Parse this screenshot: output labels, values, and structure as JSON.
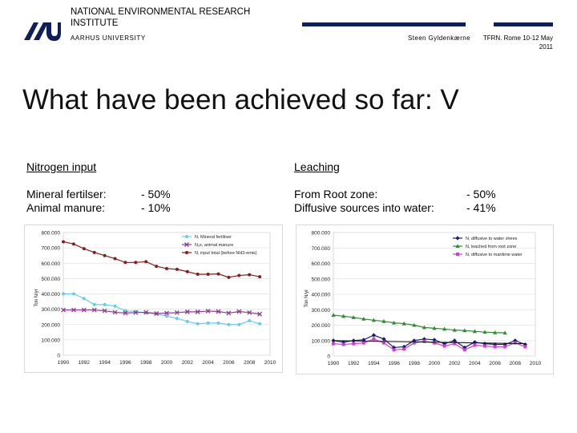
{
  "header": {
    "institution": "NATIONAL ENVIRONMENTAL RESEARCH INSTITUTE",
    "university": "AARHUS UNIVERSITY",
    "author": "Steen Gyldenkærne",
    "conference": "TFRN. Rome 10-12 May 2011"
  },
  "slide": {
    "title": "What have been achieved so far: V",
    "nitrogen_heading": "Nitrogen input",
    "leaching_heading": "Leaching",
    "mineral_label": "Mineral fertilser:",
    "mineral_value": "- 50%",
    "manure_label": "Animal manure:",
    "manure_value": "- 10%",
    "rootzone_label": "From Root zone:",
    "rootzone_value": "- 50%",
    "diffusive_label": "Diffusive sources into water:",
    "diffusive_value": "- 41%"
  },
  "colors": {
    "brand": "#0f1f5c"
  },
  "chart_data": [
    {
      "type": "line",
      "title": "",
      "xlabel": "",
      "ylabel": "Ton N/yr",
      "xlim": [
        1990,
        2010
      ],
      "ylim": [
        0,
        800000
      ],
      "x_ticks": [
        "1990",
        "1992",
        "1994",
        "1996",
        "1998",
        "2000",
        "2002",
        "2004",
        "2006",
        "2008",
        "2010"
      ],
      "y_ticks": [
        "0",
        "100.000",
        "200.000",
        "300.000",
        "400.000",
        "500.000",
        "600.000",
        "700.000",
        "800.000"
      ],
      "grid": true,
      "legend_position": "top-right",
      "series": [
        {
          "name": "N, Mineral fertiliser",
          "color": "#66ccee",
          "marker": "circle",
          "x": [
            1990,
            1991,
            1992,
            1993,
            1994,
            1995,
            1996,
            1997,
            1998,
            1999,
            2000,
            2001,
            2002,
            2003,
            2004,
            2005,
            2006,
            2007,
            2008,
            2009
          ],
          "values": [
            400000,
            400000,
            370000,
            330000,
            330000,
            320000,
            290000,
            285000,
            275000,
            270000,
            255000,
            240000,
            220000,
            205000,
            210000,
            210000,
            200000,
            200000,
            225000,
            205000
          ]
        },
        {
          "name": "N₂x, animal manure",
          "color": "#8e3a8e",
          "marker": "x",
          "x": [
            1990,
            1991,
            1992,
            1993,
            1994,
            1995,
            1996,
            1997,
            1998,
            1999,
            2000,
            2001,
            2002,
            2003,
            2004,
            2005,
            2006,
            2007,
            2008,
            2009
          ],
          "values": [
            295000,
            295000,
            295000,
            295000,
            290000,
            280000,
            275000,
            278000,
            280000,
            272000,
            275000,
            278000,
            283000,
            283000,
            288000,
            285000,
            275000,
            285000,
            278000,
            268000
          ]
        },
        {
          "name": "N, input total (before NH3-emis)",
          "color": "#8b1a1a",
          "marker": "circle",
          "x": [
            1990,
            1991,
            1992,
            1993,
            1994,
            1995,
            1996,
            1997,
            1998,
            1999,
            2000,
            2001,
            2002,
            2003,
            2004,
            2005,
            2006,
            2007,
            2008,
            2009
          ],
          "values": [
            740000,
            725000,
            695000,
            670000,
            650000,
            630000,
            605000,
            605000,
            610000,
            580000,
            565000,
            560000,
            545000,
            528000,
            528000,
            530000,
            508000,
            520000,
            525000,
            512000
          ]
        }
      ]
    },
    {
      "type": "line",
      "title": "",
      "xlabel": "",
      "ylabel": "Ton N/yr",
      "xlim": [
        1990,
        2010
      ],
      "ylim": [
        0,
        800000
      ],
      "x_ticks": [
        "1990",
        "1992",
        "1994",
        "1996",
        "1998",
        "2000",
        "2002",
        "2004",
        "2006",
        "2008",
        "2010"
      ],
      "y_ticks": [
        "0",
        "100.000",
        "200.000",
        "300.000",
        "400.000",
        "500.000",
        "600.000",
        "700.000",
        "800.000"
      ],
      "grid": true,
      "legend_position": "top-right",
      "series": [
        {
          "name": "N, diffusive to water shees",
          "color": "#1a1a7a",
          "marker": "diamond",
          "x": [
            1990,
            1991,
            1992,
            1993,
            1994,
            1995,
            1996,
            1997,
            1998,
            1999,
            2000,
            2001,
            2002,
            2003,
            2004,
            2005,
            2006,
            2007,
            2008,
            2009
          ],
          "values": [
            100000,
            90000,
            100000,
            105000,
            135000,
            110000,
            55000,
            60000,
            100000,
            110000,
            105000,
            80000,
            100000,
            55000,
            90000,
            80000,
            75000,
            75000,
            100000,
            75000
          ]
        },
        {
          "name": "N, leached from root zone",
          "color": "#2e8b2e",
          "marker": "triangle",
          "x": [
            1990,
            1991,
            1992,
            1993,
            1994,
            1995,
            1996,
            1997,
            1998,
            1999,
            2000,
            2001,
            2002,
            2003,
            2004,
            2005,
            2006,
            2007
          ],
          "values": [
            265000,
            258000,
            250000,
            240000,
            232000,
            225000,
            215000,
            210000,
            200000,
            185000,
            180000,
            175000,
            168000,
            165000,
            160000,
            155000,
            152000,
            150000
          ]
        },
        {
          "name": "N, diffusive to maritime water",
          "color": "#d63ad6",
          "marker": "square",
          "x": [
            1990,
            1991,
            1992,
            1993,
            1994,
            1995,
            1996,
            1997,
            1998,
            1999,
            2000,
            2001,
            2002,
            2003,
            2004,
            2005,
            2006,
            2007,
            2008,
            2009
          ],
          "values": [
            80000,
            75000,
            80000,
            85000,
            110000,
            85000,
            40000,
            45000,
            85000,
            95000,
            85000,
            65000,
            80000,
            40000,
            70000,
            65000,
            60000,
            60000,
            85000,
            60000
          ]
        }
      ]
    }
  ]
}
